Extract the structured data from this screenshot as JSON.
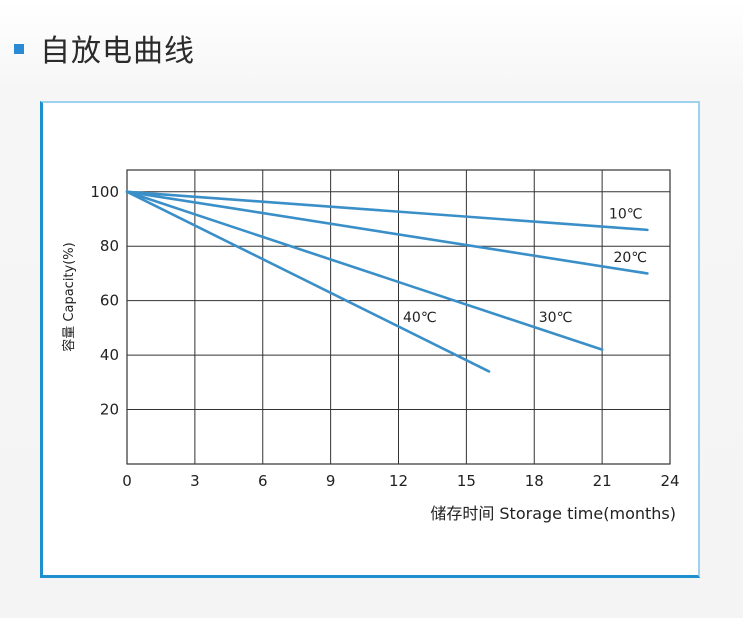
{
  "header": {
    "title": "自放电曲线"
  },
  "colors": {
    "accent": "#2a8ad4",
    "series": "#3a8fc8",
    "frame": "#1e8fcf",
    "grid": "#333333"
  },
  "chart_data": {
    "type": "line",
    "xlabel": "储存时间 Storage time(months)",
    "ylabel": "容量 Capacity(%)",
    "xlim": [
      0,
      24
    ],
    "ylim": [
      0,
      108
    ],
    "xticks": [
      0,
      3,
      6,
      9,
      12,
      15,
      18,
      21,
      24
    ],
    "yticks": [
      20,
      40,
      60,
      80,
      100
    ],
    "grid": true,
    "series": [
      {
        "name": "10℃",
        "x": [
          0,
          23
        ],
        "y": [
          100,
          86
        ],
        "label_at": [
          21.3,
          92
        ]
      },
      {
        "name": "20℃",
        "x": [
          0,
          23
        ],
        "y": [
          100,
          70
        ],
        "label_at": [
          21.5,
          76
        ]
      },
      {
        "name": "30℃",
        "x": [
          0,
          21
        ],
        "y": [
          100,
          42
        ],
        "label_at": [
          18.2,
          54
        ]
      },
      {
        "name": "40℃",
        "x": [
          0,
          16
        ],
        "y": [
          100,
          34
        ],
        "label_at": [
          12.2,
          54
        ]
      }
    ]
  }
}
